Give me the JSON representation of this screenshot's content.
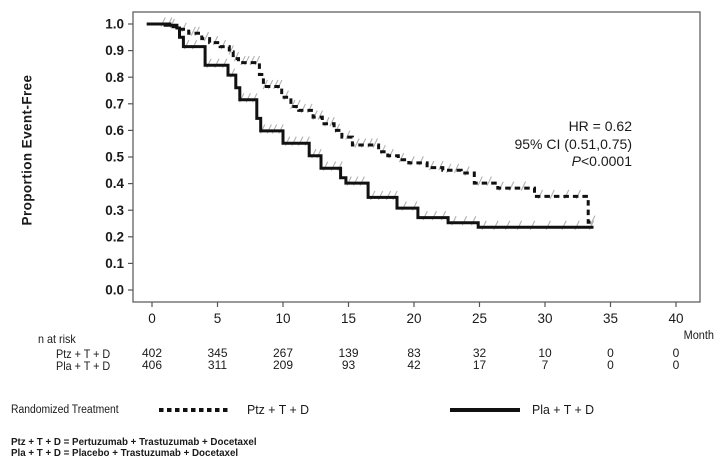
{
  "chart_data": {
    "type": "line",
    "subtype": "kaplan-meier-step",
    "ylabel": "Proportion Event-Free",
    "xlabel": "Month",
    "xticks": [
      0,
      5,
      10,
      15,
      20,
      25,
      30,
      35,
      40
    ],
    "yticks": [
      1.0,
      0.9,
      0.8,
      0.7,
      0.6,
      0.5,
      0.4,
      0.3,
      0.2,
      0.1,
      0.0
    ],
    "xlim": [
      -1.45,
      41.8
    ],
    "ylim": [
      -0.045,
      1.045
    ],
    "grid": false,
    "legend_position": "bottom",
    "annotation": {
      "hr": "HR = 0.62",
      "ci": "95% CI (0.51,0.75)",
      "p_italic": "P",
      "p_rest": "<0.0001"
    },
    "series": [
      {
        "name": "Ptz + T + D",
        "style": "dashed",
        "steps": [
          [
            -0.4,
            1.0
          ],
          [
            1.6,
            0.99
          ],
          [
            2.1,
            0.98
          ],
          [
            2.8,
            0.965
          ],
          [
            3.8,
            0.945
          ],
          [
            4.4,
            0.93
          ],
          [
            5.2,
            0.915
          ],
          [
            5.9,
            0.895
          ],
          [
            6.2,
            0.87
          ],
          [
            6.6,
            0.855
          ],
          [
            8.2,
            0.81
          ],
          [
            8.5,
            0.765
          ],
          [
            9.9,
            0.725
          ],
          [
            10.6,
            0.69
          ],
          [
            11.2,
            0.675
          ],
          [
            12.3,
            0.65
          ],
          [
            13.0,
            0.625
          ],
          [
            13.9,
            0.6
          ],
          [
            14.5,
            0.575
          ],
          [
            15.3,
            0.545
          ],
          [
            17.3,
            0.52
          ],
          [
            18.0,
            0.505
          ],
          [
            18.8,
            0.49
          ],
          [
            19.6,
            0.478
          ],
          [
            21.0,
            0.46
          ],
          [
            22.2,
            0.45
          ],
          [
            23.6,
            0.44
          ],
          [
            24.6,
            0.402
          ],
          [
            26.4,
            0.383
          ],
          [
            29.2,
            0.352
          ],
          [
            33.3,
            0.255
          ],
          [
            33.7,
            0.255
          ]
        ],
        "censor_months": [
          1.3,
          2.4,
          3.1,
          3.4,
          4.1,
          4.8,
          5.4,
          6.0,
          6.4,
          6.9,
          7.2,
          7.6,
          8.0,
          8.6,
          9.0,
          9.4,
          9.7,
          10.2,
          10.7,
          11.1,
          11.5,
          12.0,
          12.4,
          12.8,
          13.3,
          13.7,
          14.1,
          14.9,
          15.6,
          16.1,
          16.6,
          17.0,
          17.6,
          18.2,
          19.0,
          19.8,
          20.5,
          21.3,
          22.0,
          22.6,
          23.2,
          24.0,
          25.0,
          25.7,
          26.6,
          27.4,
          28.3,
          29.6,
          30.5,
          31.6,
          32.5,
          33.6
        ]
      },
      {
        "name": "Pla + T + D",
        "style": "solid",
        "steps": [
          [
            -0.4,
            1.0
          ],
          [
            1.0,
            0.995
          ],
          [
            1.9,
            0.985
          ],
          [
            2.1,
            0.95
          ],
          [
            2.4,
            0.915
          ],
          [
            4.05,
            0.845
          ],
          [
            5.8,
            0.808
          ],
          [
            6.4,
            0.76
          ],
          [
            6.7,
            0.715
          ],
          [
            8.0,
            0.645
          ],
          [
            8.3,
            0.598
          ],
          [
            10.0,
            0.552
          ],
          [
            12.0,
            0.505
          ],
          [
            12.9,
            0.458
          ],
          [
            14.4,
            0.422
          ],
          [
            14.8,
            0.402
          ],
          [
            16.5,
            0.348
          ],
          [
            18.7,
            0.308
          ],
          [
            20.3,
            0.272
          ],
          [
            22.6,
            0.253
          ],
          [
            24.9,
            0.236
          ],
          [
            33.7,
            0.236
          ]
        ],
        "censor_months": [
          0.8,
          1.5,
          2.6,
          3.2,
          4.3,
          4.9,
          5.5,
          6.1,
          6.8,
          7.3,
          7.8,
          8.4,
          8.9,
          9.3,
          9.8,
          10.3,
          10.8,
          11.3,
          11.8,
          12.3,
          12.7,
          13.2,
          13.8,
          14.3,
          15.0,
          15.5,
          16.0,
          16.8,
          17.4,
          18.0,
          18.5,
          19.2,
          20.0,
          20.8,
          21.5,
          22.2,
          23.0,
          23.8,
          24.5,
          25.3,
          26.2,
          27.1,
          28.0,
          29.0,
          30.2,
          31.4,
          32.4,
          33.5
        ]
      }
    ],
    "risk_table": {
      "label": "n at risk",
      "rows": [
        {
          "label": "Ptz + T + D",
          "counts": [
            "402",
            "345",
            "267",
            "139",
            "83",
            "32",
            "10",
            "0",
            "0"
          ]
        },
        {
          "label": "Pla + T + D",
          "counts": [
            "406",
            "311",
            "209",
            "93",
            "42",
            "17",
            "7",
            "0",
            "0"
          ]
        }
      ]
    },
    "legend": {
      "title": "Randomized Treatment",
      "entries": [
        {
          "label": "Ptz + T + D",
          "style": "dashed"
        },
        {
          "label": "Pla + T + D",
          "style": "solid"
        }
      ]
    },
    "footnotes": [
      "Ptz + T + D = Pertuzumab + Trastuzumab + Docetaxel",
      "Pla + T + D = Placebo + Trastuzumab + Docetaxel"
    ],
    "colors": {
      "curve": "#111111",
      "censor": "#b0b0b0",
      "frame": "#555555",
      "text": "#1a1a1a"
    }
  }
}
